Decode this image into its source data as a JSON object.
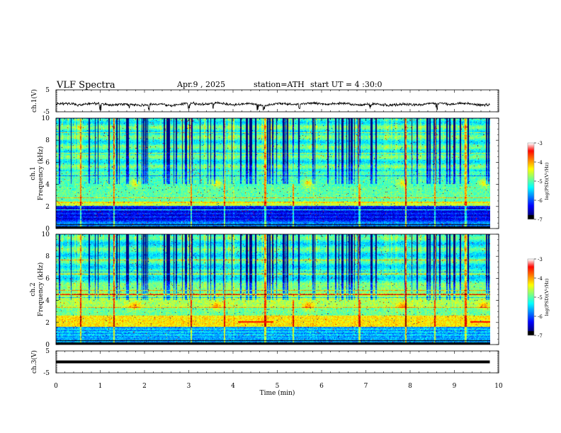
{
  "header": {
    "title": "VLF  Spectra",
    "date": "Apr.9  , 2025",
    "station": "station=ATH",
    "start": "start  UT  =   4  :30:0"
  },
  "chart_data": [
    {
      "type": "line",
      "name": "channel-1-waveform",
      "ylabel": "ch.1(V)",
      "yticks": [
        "5",
        "-5"
      ],
      "ylim": [
        -5,
        5
      ],
      "xlim": [
        0,
        10
      ],
      "approx_level": -1.5,
      "approx_range": [
        -3.5,
        0
      ]
    },
    {
      "type": "heatmap",
      "name": "channel-1-spectrogram",
      "ylabel_lines": [
        "ch.1",
        "Frequency  (kHz)"
      ],
      "yticks": [
        "0",
        "2",
        "4",
        "6",
        "8",
        "10"
      ],
      "ylim": [
        0,
        10
      ],
      "xlim": [
        0,
        10
      ],
      "data_end_min": 9.8,
      "colorbar": {
        "label": "log(PSD)(V²/Hz)",
        "ticks": [
          "-3",
          "-4",
          "-5",
          "-6",
          "-7"
        ],
        "range": [
          -7,
          -3
        ]
      }
    },
    {
      "type": "heatmap",
      "name": "channel-2-spectrogram",
      "ylabel_lines": [
        "ch.2",
        "Frequency  (kHz)"
      ],
      "yticks": [
        "0",
        "2",
        "4",
        "6",
        "8",
        "10"
      ],
      "ylim": [
        0,
        10
      ],
      "xlim": [
        0,
        10
      ],
      "data_end_min": 9.8,
      "colorbar": {
        "label": "log(PSD)(V²/Hz)",
        "ticks": [
          "-3",
          "-4",
          "-5",
          "-6",
          "-7"
        ],
        "range": [
          -7,
          -3
        ]
      }
    },
    {
      "type": "line",
      "name": "channel-3-waveform",
      "ylabel": "ch.3(V)",
      "yticks": [
        "5",
        "-5"
      ],
      "ylim": [
        -5,
        5
      ],
      "xlim": [
        0,
        10
      ],
      "approx_level": 0
    }
  ],
  "xaxis": {
    "label": "Time  (min)",
    "ticks": [
      "0",
      "1",
      "2",
      "3",
      "4",
      "5",
      "6",
      "7",
      "8",
      "9",
      "10"
    ],
    "range": [
      0,
      10
    ]
  }
}
